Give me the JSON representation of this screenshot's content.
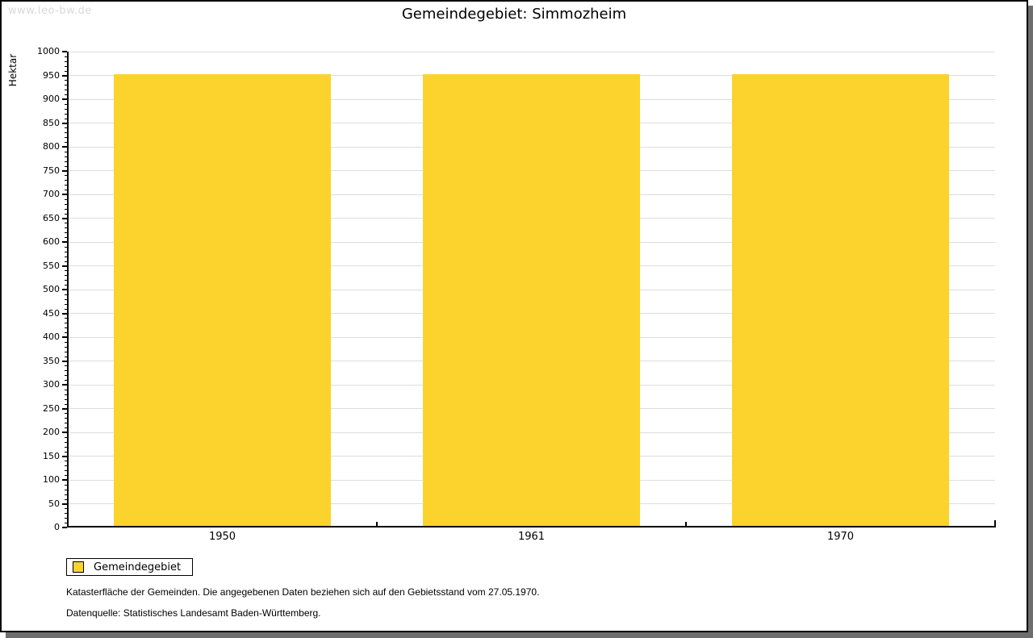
{
  "watermark": "www.leo-bw.de",
  "title": "Gemeindegebiet: Simmozheim",
  "chart_data": {
    "type": "bar",
    "title": "Gemeindegebiet: Simmozheim",
    "categories": [
      "1950",
      "1961",
      "1970"
    ],
    "series": [
      {
        "name": "Gemeindegebiet",
        "values": [
          953,
          953,
          953
        ]
      }
    ],
    "xlabel": "",
    "ylabel": "Hektar",
    "ylim": [
      0,
      1000
    ],
    "y_major_step": 50,
    "y_minor_step": 10,
    "grid": true,
    "legend_position": "below-left",
    "bar_width_fraction": 0.7
  },
  "legend": {
    "items": [
      {
        "label": "Gemeindegebiet",
        "color": "#FCD32C"
      }
    ]
  },
  "footnotes": [
    "Katasterfläche der Gemeinden. Die angegebenen Daten beziehen sich auf den Gebietsstand vom 27.05.1970.",
    "Datenquelle: Statistisches Landesamt Baden-Württemberg."
  ],
  "colors": {
    "bar": "#FCD32C",
    "grid": "#DDDDDD",
    "axis": "#000000",
    "watermark": "#D9D9D9",
    "shadow": "#6E6E6E",
    "background": "#FFFFFF"
  }
}
